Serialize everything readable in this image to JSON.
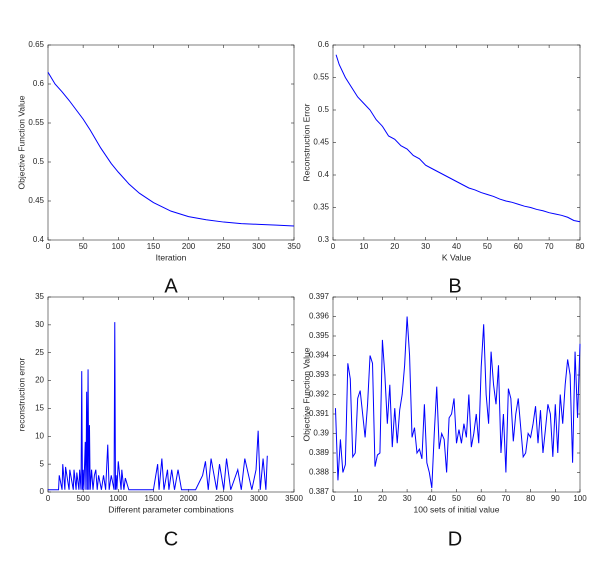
{
  "chart_data": [
    {
      "type": "line",
      "panel_label": "A",
      "xlabel": "Iteration",
      "ylabel": "Objective Function Value",
      "x": [
        0,
        10,
        20,
        30,
        40,
        50,
        60,
        75,
        90,
        100,
        115,
        130,
        150,
        175,
        200,
        225,
        250,
        275,
        300,
        325,
        350
      ],
      "values": [
        0.615,
        0.6,
        0.59,
        0.579,
        0.567,
        0.555,
        0.541,
        0.518,
        0.498,
        0.487,
        0.472,
        0.46,
        0.448,
        0.437,
        0.43,
        0.426,
        0.423,
        0.421,
        0.42,
        0.419,
        0.418
      ],
      "color": "#0000ff",
      "xlim": [
        0,
        350
      ],
      "xticks": [
        0,
        50,
        100,
        150,
        200,
        250,
        300,
        350
      ],
      "ylim": [
        0.4,
        0.65
      ],
      "yticks": [
        0.4,
        0.45,
        0.5,
        0.55,
        0.6,
        0.65
      ]
    },
    {
      "type": "line",
      "panel_label": "B",
      "xlabel": "K Value",
      "ylabel": "Reconstruction Error",
      "x": [
        1,
        2,
        4,
        6,
        8,
        10,
        12,
        14,
        16,
        18,
        20,
        22,
        24,
        26,
        28,
        30,
        32,
        34,
        36,
        38,
        40,
        42,
        44,
        46,
        48,
        50,
        52,
        54,
        56,
        58,
        60,
        62,
        64,
        66,
        68,
        70,
        72,
        74,
        76,
        78,
        80
      ],
      "values": [
        0.585,
        0.57,
        0.55,
        0.535,
        0.52,
        0.51,
        0.5,
        0.485,
        0.475,
        0.46,
        0.455,
        0.445,
        0.44,
        0.43,
        0.425,
        0.415,
        0.41,
        0.405,
        0.4,
        0.395,
        0.39,
        0.385,
        0.38,
        0.377,
        0.373,
        0.37,
        0.367,
        0.363,
        0.36,
        0.358,
        0.355,
        0.352,
        0.35,
        0.347,
        0.345,
        0.342,
        0.34,
        0.338,
        0.335,
        0.33,
        0.328
      ],
      "color": "#0000ff",
      "xlim": [
        0,
        80
      ],
      "xticks": [
        0,
        10,
        20,
        30,
        40,
        50,
        60,
        70,
        80
      ],
      "ylim": [
        0.3,
        0.6
      ],
      "yticks": [
        0.3,
        0.35,
        0.4,
        0.45,
        0.5,
        0.55,
        0.6
      ]
    },
    {
      "type": "line",
      "panel_label": "C",
      "xlabel": "Different parameter combinations",
      "ylabel": "reconstruction error",
      "x": [
        0,
        150,
        160,
        200,
        210,
        240,
        250,
        300,
        310,
        360,
        370,
        400,
        410,
        440,
        450,
        470,
        480,
        490,
        500,
        510,
        530,
        540,
        550,
        560,
        570,
        580,
        590,
        600,
        620,
        640,
        660,
        680,
        700,
        720,
        760,
        790,
        820,
        850,
        870,
        900,
        940,
        950,
        960,
        970,
        980,
        1000,
        1040,
        1050,
        1080,
        1100,
        1150,
        1200,
        1250,
        1300,
        1400,
        1500,
        1560,
        1580,
        1620,
        1650,
        1700,
        1720,
        1760,
        1800,
        1850,
        1900,
        2000,
        2100,
        2200,
        2240,
        2280,
        2320,
        2400,
        2440,
        2500,
        2540,
        2600,
        2700,
        2750,
        2800,
        2900,
        2960,
        2990,
        3020,
        3060,
        3100,
        3120
      ],
      "values": [
        0.4,
        0.4,
        3,
        0.4,
        5,
        0.4,
        4.5,
        0.4,
        4,
        0.4,
        4,
        0.4,
        3.5,
        0.4,
        4,
        0.4,
        21.7,
        0.4,
        4,
        0.4,
        9,
        0.4,
        18,
        0.4,
        22,
        0.4,
        12,
        0.4,
        4,
        0.4,
        3,
        4,
        0.4,
        3,
        0.4,
        3,
        0.4,
        8.5,
        0.4,
        3,
        0.4,
        30.5,
        0.4,
        3,
        0.4,
        5.5,
        0.4,
        4,
        0.4,
        2.5,
        0.4,
        0.4,
        0.4,
        0.4,
        0.4,
        0.4,
        5,
        0.4,
        6,
        0.4,
        4,
        0.4,
        4,
        0.4,
        4,
        0.4,
        0.4,
        0.4,
        3,
        5.5,
        0.4,
        6,
        0.4,
        5,
        0.4,
        6,
        0.4,
        4,
        0.4,
        6,
        0.4,
        4,
        11,
        0.4,
        6,
        0.4,
        6.5
      ],
      "color": "#0000ff",
      "xlim": [
        0,
        3500
      ],
      "xticks": [
        0,
        500,
        1000,
        1500,
        2000,
        2500,
        3000,
        3500
      ],
      "ylim": [
        0,
        35
      ],
      "yticks": [
        0,
        5,
        10,
        15,
        20,
        25,
        30,
        35
      ]
    },
    {
      "type": "line",
      "panel_label": "D",
      "xlabel": "100 sets of initial value",
      "ylabel": "Objective Function Value",
      "x": [
        1,
        2,
        3,
        4,
        5,
        6,
        7,
        8,
        9,
        10,
        11,
        12,
        13,
        14,
        15,
        16,
        17,
        18,
        19,
        20,
        21,
        22,
        23,
        24,
        25,
        26,
        27,
        28,
        29,
        30,
        31,
        32,
        33,
        34,
        35,
        36,
        37,
        38,
        39,
        40,
        41,
        42,
        43,
        44,
        45,
        46,
        47,
        48,
        49,
        50,
        51,
        52,
        53,
        54,
        55,
        56,
        57,
        58,
        59,
        60,
        61,
        62,
        63,
        64,
        65,
        66,
        67,
        68,
        69,
        70,
        71,
        72,
        73,
        74,
        75,
        76,
        77,
        78,
        79,
        80,
        81,
        82,
        83,
        84,
        85,
        86,
        87,
        88,
        89,
        90,
        91,
        92,
        93,
        94,
        95,
        96,
        97,
        98,
        99,
        100
      ],
      "values": [
        0.3913,
        0.3876,
        0.3897,
        0.388,
        0.3884,
        0.3936,
        0.3928,
        0.3888,
        0.389,
        0.3918,
        0.3922,
        0.391,
        0.3898,
        0.3915,
        0.394,
        0.3936,
        0.3883,
        0.3889,
        0.389,
        0.3948,
        0.393,
        0.3905,
        0.3925,
        0.3893,
        0.3913,
        0.3895,
        0.3912,
        0.392,
        0.3935,
        0.396,
        0.394,
        0.3898,
        0.3903,
        0.389,
        0.3892,
        0.3887,
        0.3915,
        0.3885,
        0.388,
        0.3872,
        0.39,
        0.3924,
        0.3892,
        0.39,
        0.3897,
        0.388,
        0.3908,
        0.391,
        0.3918,
        0.3895,
        0.3902,
        0.3895,
        0.3905,
        0.3898,
        0.392,
        0.3893,
        0.39,
        0.391,
        0.3895,
        0.3934,
        0.3956,
        0.392,
        0.3905,
        0.3942,
        0.3925,
        0.3915,
        0.3935,
        0.389,
        0.391,
        0.388,
        0.3923,
        0.3918,
        0.3896,
        0.391,
        0.3918,
        0.3903,
        0.3888,
        0.389,
        0.39,
        0.3898,
        0.3905,
        0.3914,
        0.3895,
        0.3912,
        0.389,
        0.3902,
        0.3915,
        0.391,
        0.3888,
        0.3915,
        0.389,
        0.392,
        0.3905,
        0.3925,
        0.3938,
        0.393,
        0.3885,
        0.3942,
        0.3908,
        0.3946
      ],
      "color": "#0000ff",
      "xlim": [
        0,
        100
      ],
      "xticks": [
        0,
        10,
        20,
        30,
        40,
        50,
        60,
        70,
        80,
        90,
        100
      ],
      "ylim": [
        0.387,
        0.397
      ],
      "yticks": [
        0.387,
        0.388,
        0.389,
        0.39,
        0.391,
        0.392,
        0.393,
        0.394,
        0.395,
        0.396,
        0.397
      ]
    }
  ]
}
